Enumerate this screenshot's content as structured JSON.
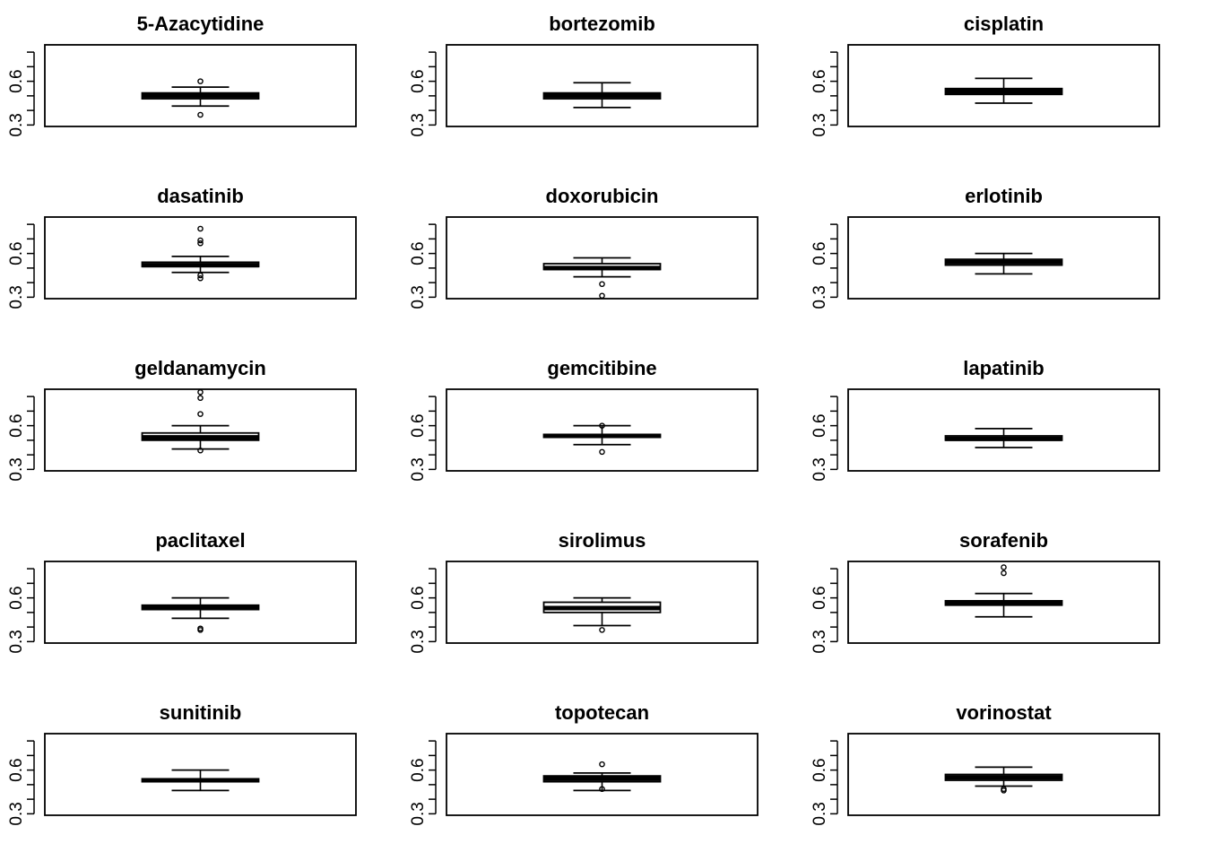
{
  "figure": {
    "layout": "5 rows x 3 columns of boxplots",
    "y_tick_labels": [
      "0.3",
      "0.6"
    ],
    "y_minor_ticks": [
      0.3,
      0.4,
      0.5,
      0.6,
      0.7,
      0.8
    ],
    "ylim": [
      0.29,
      0.85
    ],
    "stroke_color": "#000000",
    "background": "#ffffff"
  },
  "chart_data": [
    {
      "type": "boxplot",
      "title": "5-Azacytidine",
      "ylim": [
        0.29,
        0.85
      ],
      "grid": false,
      "whisker_low": 0.43,
      "q1": 0.48,
      "median": 0.5,
      "q3": 0.52,
      "whisker_high": 0.56,
      "outliers": [
        0.6,
        0.37
      ]
    },
    {
      "type": "boxplot",
      "title": "bortezomib",
      "ylim": [
        0.29,
        0.85
      ],
      "grid": false,
      "whisker_low": 0.42,
      "q1": 0.48,
      "median": 0.5,
      "q3": 0.52,
      "whisker_high": 0.59,
      "outliers": []
    },
    {
      "type": "boxplot",
      "title": "cisplatin",
      "ylim": [
        0.29,
        0.85
      ],
      "grid": false,
      "whisker_low": 0.45,
      "q1": 0.51,
      "median": 0.53,
      "q3": 0.55,
      "whisker_high": 0.62,
      "outliers": []
    },
    {
      "type": "boxplot",
      "title": "dasatinib",
      "ylim": [
        0.29,
        0.85
      ],
      "grid": false,
      "whisker_low": 0.47,
      "q1": 0.51,
      "median": 0.52,
      "q3": 0.54,
      "whisker_high": 0.58,
      "outliers": [
        0.77,
        0.69,
        0.67,
        0.45,
        0.43
      ]
    },
    {
      "type": "boxplot",
      "title": "doxorubicin",
      "ylim": [
        0.29,
        0.85
      ],
      "grid": false,
      "whisker_low": 0.44,
      "q1": 0.49,
      "median": 0.5,
      "q3": 0.53,
      "whisker_high": 0.57,
      "outliers": [
        0.39,
        0.31
      ]
    },
    {
      "type": "boxplot",
      "title": "erlotinib",
      "ylim": [
        0.29,
        0.85
      ],
      "grid": false,
      "whisker_low": 0.46,
      "q1": 0.52,
      "median": 0.54,
      "q3": 0.56,
      "whisker_high": 0.6,
      "outliers": []
    },
    {
      "type": "boxplot",
      "title": "geldanamycin",
      "ylim": [
        0.29,
        0.85
      ],
      "grid": false,
      "whisker_low": 0.44,
      "q1": 0.5,
      "median": 0.52,
      "q3": 0.55,
      "whisker_high": 0.6,
      "outliers": [
        0.83,
        0.79,
        0.68,
        0.43
      ]
    },
    {
      "type": "boxplot",
      "title": "gemcitibine",
      "ylim": [
        0.29,
        0.85
      ],
      "grid": false,
      "whisker_low": 0.47,
      "q1": 0.52,
      "median": 0.53,
      "q3": 0.54,
      "whisker_high": 0.6,
      "outliers": [
        0.6,
        0.42
      ]
    },
    {
      "type": "boxplot",
      "title": "lapatinib",
      "ylim": [
        0.29,
        0.85
      ],
      "grid": false,
      "whisker_low": 0.45,
      "q1": 0.5,
      "median": 0.51,
      "q3": 0.53,
      "whisker_high": 0.58,
      "outliers": []
    },
    {
      "type": "boxplot",
      "title": "paclitaxel",
      "ylim": [
        0.29,
        0.85
      ],
      "grid": false,
      "whisker_low": 0.46,
      "q1": 0.52,
      "median": 0.53,
      "q3": 0.55,
      "whisker_high": 0.6,
      "outliers": [
        0.39,
        0.38
      ]
    },
    {
      "type": "boxplot",
      "title": "sirolimus",
      "ylim": [
        0.29,
        0.85
      ],
      "grid": false,
      "whisker_low": 0.41,
      "q1": 0.5,
      "median": 0.53,
      "q3": 0.57,
      "whisker_high": 0.6,
      "outliers": [
        0.38
      ]
    },
    {
      "type": "boxplot",
      "title": "sorafenib",
      "ylim": [
        0.29,
        0.85
      ],
      "grid": false,
      "whisker_low": 0.47,
      "q1": 0.55,
      "median": 0.57,
      "q3": 0.58,
      "whisker_high": 0.63,
      "outliers": [
        0.81,
        0.77
      ]
    },
    {
      "type": "boxplot",
      "title": "sunitinib",
      "ylim": [
        0.29,
        0.85
      ],
      "grid": false,
      "whisker_low": 0.46,
      "q1": 0.52,
      "median": 0.53,
      "q3": 0.54,
      "whisker_high": 0.6,
      "outliers": []
    },
    {
      "type": "boxplot",
      "title": "topotecan",
      "ylim": [
        0.29,
        0.85
      ],
      "grid": false,
      "whisker_low": 0.46,
      "q1": 0.52,
      "median": 0.54,
      "q3": 0.56,
      "whisker_high": 0.58,
      "outliers": [
        0.64,
        0.47
      ]
    },
    {
      "type": "boxplot",
      "title": "vorinostat",
      "ylim": [
        0.29,
        0.85
      ],
      "grid": false,
      "whisker_low": 0.49,
      "q1": 0.53,
      "median": 0.55,
      "q3": 0.57,
      "whisker_high": 0.62,
      "outliers": [
        0.47,
        0.46
      ]
    }
  ]
}
